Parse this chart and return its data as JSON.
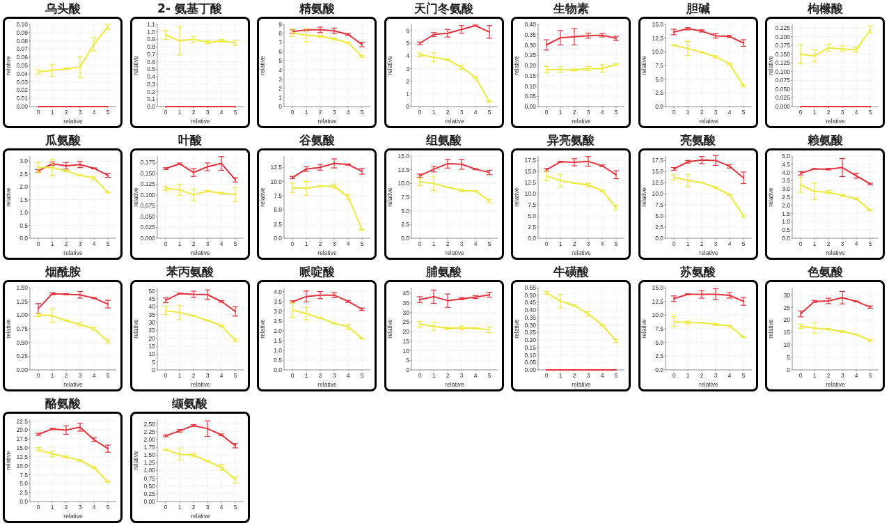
{
  "chart_data": [
    {
      "type": "line",
      "title": "乌头酸",
      "xlabel": "relative",
      "ylabel": "relative",
      "x": [
        0,
        1,
        2,
        3,
        4,
        5
      ],
      "xlim": [
        -0.6,
        5.6
      ],
      "xticks": [
        0,
        1,
        2,
        3,
        4,
        5
      ],
      "ylim": [
        0,
        0.1
      ],
      "yticks": [
        {
          "value": 0,
          "label": "0.00"
        },
        0.01,
        0.02,
        0.03,
        0.04,
        0.05,
        0.06,
        0.07,
        0.08,
        0.09,
        {
          "value": 0.1,
          "label": "0.10"
        }
      ],
      "grid": true,
      "series": [
        {
          "color": "#e8303a",
          "values": [
            0,
            0,
            0,
            0,
            0,
            0
          ]
        },
        {
          "color": "#eee83a",
          "values": [
            0.042,
            0.044,
            0.046,
            0.048,
            0.076,
            0.097
          ],
          "errors": [
            0.003,
            0.007,
            0.001,
            0.013,
            0.008,
            0.003
          ]
        }
      ]
    },
    {
      "type": "line",
      "title": "2- 氨基丁酸",
      "xlabel": "relative",
      "ylabel": "relative",
      "x": [
        0,
        1,
        2,
        3,
        4,
        5
      ],
      "xlim": [
        -0.6,
        5.6
      ],
      "xticks": [
        0,
        1,
        2,
        3,
        4,
        5
      ],
      "ylim": [
        0,
        1.1
      ],
      "yticks": [
        {
          "value": 0,
          "label": "0.0"
        },
        0.1,
        0.2,
        0.3,
        0.4,
        0.5,
        0.6,
        0.7,
        0.8,
        0.9,
        {
          "value": 1,
          "label": "1.0"
        },
        1.1
      ],
      "grid": true,
      "series": [
        {
          "color": "#e8303a",
          "values": [
            0,
            0,
            0,
            0,
            0,
            0
          ]
        },
        {
          "color": "#eee83a",
          "values": [
            0.96,
            0.88,
            0.9,
            0.86,
            0.88,
            0.85
          ],
          "errors": [
            0.06,
            0.19,
            0.04,
            0.02,
            0.02,
            0.03
          ]
        }
      ]
    },
    {
      "type": "line",
      "title": "精氨酸",
      "xlabel": "relative",
      "ylabel": "relative",
      "x": [
        0,
        1,
        2,
        3,
        4,
        5
      ],
      "xlim": [
        -0.6,
        5.6
      ],
      "xticks": [
        0,
        1,
        2,
        3,
        4,
        5
      ],
      "ylim": [
        0,
        9
      ],
      "yticks": [
        0,
        1,
        2,
        3,
        4,
        5,
        6,
        7,
        8,
        9
      ],
      "grid": true,
      "series": [
        {
          "color": "#e8303a",
          "values": [
            8.2,
            8.4,
            8.4,
            8.3,
            7.9,
            6.8
          ],
          "errors": [
            0.2,
            0.1,
            0.3,
            0.3,
            0.1,
            0.25
          ]
        },
        {
          "color": "#eee83a",
          "values": [
            8.1,
            7.8,
            7.7,
            7.4,
            7.0,
            5.5
          ],
          "errors": [
            0.4,
            0.7,
            0.1,
            0.1,
            0.05,
            0.1
          ]
        }
      ]
    },
    {
      "type": "line",
      "title": "天门冬氨酸",
      "xlabel": "relative",
      "ylabel": "relative",
      "x": [
        0,
        1,
        2,
        3,
        4,
        5
      ],
      "xlim": [
        -0.6,
        5.6
      ],
      "xticks": [
        0,
        1,
        2,
        3,
        4,
        5
      ],
      "ylim": [
        0,
        6.5
      ],
      "yticks": [
        0,
        1,
        2,
        3,
        4,
        5,
        6
      ],
      "grid": true,
      "series": [
        {
          "color": "#e8303a",
          "values": [
            5.0,
            5.7,
            5.8,
            6.1,
            6.4,
            5.9
          ],
          "errors": [
            0.1,
            0.15,
            0.3,
            0.3,
            0.05,
            0.5
          ]
        },
        {
          "color": "#eee83a",
          "values": [
            4.1,
            3.9,
            3.7,
            3.1,
            2.3,
            0.4
          ],
          "errors": [
            0.15,
            0.35,
            0.05,
            0.15,
            0.05,
            0.05
          ]
        }
      ]
    },
    {
      "type": "line",
      "title": "生物素",
      "xlabel": "relative",
      "ylabel": "relative",
      "x": [
        0,
        1,
        2,
        3,
        4,
        5
      ],
      "xlim": [
        -0.6,
        5.6
      ],
      "xticks": [
        0,
        1,
        2,
        3,
        4,
        5
      ],
      "ylim": [
        0,
        0.4
      ],
      "yticks": [
        {
          "value": 0,
          "label": "0.00"
        },
        0.05,
        {
          "value": 0.1,
          "label": "0.10"
        },
        0.15,
        {
          "value": 0.2,
          "label": "0.20"
        },
        0.25,
        {
          "value": 0.3,
          "label": "0.30"
        },
        0.35,
        {
          "value": 0.4,
          "label": "0.40"
        }
      ],
      "grid": true,
      "series": [
        {
          "color": "#e8303a",
          "values": [
            0.3,
            0.335,
            0.34,
            0.345,
            0.347,
            0.332
          ],
          "errors": [
            0.025,
            0.035,
            0.04,
            0.012,
            0.008,
            0.01
          ]
        },
        {
          "color": "#eee83a",
          "values": [
            0.18,
            0.18,
            0.178,
            0.185,
            0.185,
            0.205
          ],
          "errors": [
            0.015,
            0.013,
            0.005,
            0.01,
            0.018,
            0.004
          ]
        }
      ]
    },
    {
      "type": "line",
      "title": "胆碱",
      "xlabel": "relative",
      "ylabel": "relative",
      "x": [
        0,
        1,
        2,
        3,
        4,
        5
      ],
      "xlim": [
        -0.6,
        5.6
      ],
      "xticks": [
        0,
        1,
        2,
        3,
        4,
        5
      ],
      "ylim": [
        0,
        15
      ],
      "yticks": [
        {
          "value": 0,
          "label": "0.0"
        },
        2.5,
        {
          "value": 5,
          "label": "5.0"
        },
        7.5,
        {
          "value": 10,
          "label": "10.0"
        },
        12.5,
        {
          "value": 15,
          "label": "15.0"
        }
      ],
      "grid": true,
      "series": [
        {
          "color": "#e8303a",
          "values": [
            13.6,
            14.2,
            13.8,
            12.9,
            12.8,
            11.6
          ],
          "errors": [
            0.5,
            0.2,
            0.2,
            0.4,
            0.2,
            0.6
          ]
        },
        {
          "color": "#eee83a",
          "values": [
            11.2,
            10.6,
            9.9,
            9.1,
            7.8,
            3.8
          ],
          "errors": [
            0.1,
            1.3,
            0.1,
            0.2,
            0.1,
            0.2
          ]
        }
      ]
    },
    {
      "type": "line",
      "title": "枸橼酸",
      "xlabel": "relative",
      "ylabel": "relative",
      "x": [
        0,
        1,
        2,
        3,
        4,
        5
      ],
      "xlim": [
        -0.6,
        5.6
      ],
      "xticks": [
        0,
        1,
        2,
        3,
        4,
        5
      ],
      "ylim": [
        0,
        0.235
      ],
      "yticks": [
        {
          "value": 0,
          "label": "0.000"
        },
        0.025,
        {
          "value": 0.05,
          "label": "0.050"
        },
        0.075,
        {
          "value": 0.1,
          "label": "0.100"
        },
        0.125,
        {
          "value": 0.15,
          "label": "0.150"
        },
        0.175,
        {
          "value": 0.2,
          "label": "0.200"
        },
        0.225
      ],
      "grid": true,
      "series": [
        {
          "color": "#e8303a",
          "values": [
            0,
            0,
            0,
            0,
            0,
            0
          ]
        },
        {
          "color": "#eee83a",
          "values": [
            0.15,
            0.145,
            0.168,
            0.165,
            0.162,
            0.22
          ],
          "errors": [
            0.027,
            0.017,
            0.01,
            0.008,
            0.006,
            0.01
          ]
        }
      ]
    },
    {
      "type": "line",
      "title": "瓜氨酸",
      "xlabel": "relative",
      "ylabel": "relative",
      "x": [
        0,
        1,
        2,
        3,
        4,
        5
      ],
      "xlim": [
        -0.6,
        5.6
      ],
      "xticks": [
        0,
        1,
        2,
        3,
        4,
        5
      ],
      "ylim": [
        0,
        3.2
      ],
      "yticks": [
        {
          "value": 0,
          "label": "0.0"
        },
        0.5,
        {
          "value": 1,
          "label": "1.0"
        },
        1.5,
        {
          "value": 2,
          "label": "2.0"
        },
        2.5,
        {
          "value": 3,
          "label": "3.0"
        }
      ],
      "grid": true,
      "series": [
        {
          "color": "#e8303a",
          "values": [
            2.62,
            2.9,
            2.82,
            2.87,
            2.72,
            2.45
          ],
          "errors": [
            0.05,
            0.07,
            0.13,
            0.12,
            0.02,
            0.08
          ]
        },
        {
          "color": "#eee83a",
          "values": [
            2.75,
            2.75,
            2.62,
            2.45,
            2.35,
            1.78
          ],
          "errors": [
            0.2,
            0.32,
            0.03,
            0.02,
            0.06,
            0.02
          ]
        }
      ]
    },
    {
      "type": "line",
      "title": "叶酸",
      "xlabel": "relative",
      "ylabel": "relative",
      "x": [
        0,
        1,
        2,
        3,
        4,
        5
      ],
      "xlim": [
        -0.6,
        5.6
      ],
      "xticks": [
        0,
        1,
        2,
        3,
        4,
        5
      ],
      "ylim": [
        0,
        0.19
      ],
      "yticks": [
        {
          "value": 0,
          "label": "0.000"
        },
        0.025,
        {
          "value": 0.05,
          "label": "0.050"
        },
        0.075,
        {
          "value": 0.1,
          "label": "0.100"
        },
        0.125,
        {
          "value": 0.15,
          "label": "0.150"
        },
        0.175
      ],
      "grid": true,
      "series": [
        {
          "color": "#e8303a",
          "values": [
            0.161,
            0.172,
            0.152,
            0.165,
            0.173,
            0.135
          ],
          "errors": [
            0.002,
            0.002,
            0.009,
            0.009,
            0.016,
            0.005
          ]
        },
        {
          "color": "#eee83a",
          "values": [
            0.115,
            0.112,
            0.1,
            0.109,
            0.104,
            0.101
          ],
          "errors": [
            0.005,
            0.013,
            0.013,
            0.002,
            0.002,
            0.016
          ]
        }
      ]
    },
    {
      "type": "line",
      "title": "谷氨酸",
      "xlabel": "relative",
      "ylabel": "relative",
      "x": [
        0,
        1,
        2,
        3,
        4,
        5
      ],
      "xlim": [
        -0.6,
        5.6
      ],
      "xticks": [
        0,
        1,
        2,
        3,
        4,
        5
      ],
      "ylim": [
        0,
        14.5
      ],
      "yticks": [
        {
          "value": 0,
          "label": "0.0"
        },
        2.5,
        {
          "value": 5,
          "label": "5.0"
        },
        7.5,
        {
          "value": 10,
          "label": "10.0"
        },
        12.5
      ],
      "grid": true,
      "series": [
        {
          "color": "#e8303a",
          "values": [
            10.7,
            12.2,
            12.5,
            13.2,
            13.0,
            11.8
          ],
          "errors": [
            0.2,
            0.4,
            0.5,
            0.8,
            0.1,
            0.5
          ]
        },
        {
          "color": "#eee83a",
          "values": [
            8.9,
            8.8,
            9.2,
            9.2,
            7.3,
            1.5
          ],
          "errors": [
            0.8,
            1.2,
            0.1,
            0.35,
            0.4,
            0.1
          ]
        }
      ]
    },
    {
      "type": "line",
      "title": "组氨酸",
      "xlabel": "relative",
      "ylabel": "relative",
      "x": [
        0,
        1,
        2,
        3,
        4,
        5
      ],
      "xlim": [
        -0.6,
        5.6
      ],
      "xticks": [
        0,
        1,
        2,
        3,
        4,
        5
      ],
      "ylim": [
        0,
        15
      ],
      "yticks": [
        {
          "value": 0,
          "label": "0.0"
        },
        2.5,
        {
          "value": 5,
          "label": "5.0"
        },
        7.5,
        {
          "value": 10,
          "label": "10.0"
        },
        12.5,
        {
          "value": 15,
          "label": "15.0"
        }
      ],
      "grid": true,
      "series": [
        {
          "color": "#e8303a",
          "values": [
            11.4,
            12.6,
            13.6,
            13.5,
            12.6,
            12.0
          ],
          "errors": [
            0.3,
            0.5,
            0.8,
            0.9,
            0.1,
            0.4
          ]
        },
        {
          "color": "#eee83a",
          "values": [
            10.3,
            10.0,
            9.3,
            8.7,
            8.6,
            6.8
          ],
          "errors": [
            0.7,
            1.3,
            0.05,
            0.2,
            0.05,
            0.3
          ]
        }
      ]
    },
    {
      "type": "line",
      "title": "异亮氨酸",
      "xlabel": "relative",
      "ylabel": "relative",
      "x": [
        0,
        1,
        2,
        3,
        4,
        5
      ],
      "xlim": [
        -0.6,
        5.6
      ],
      "xticks": [
        0,
        1,
        2,
        3,
        4,
        5
      ],
      "ylim": [
        0,
        18.5
      ],
      "yticks": [
        {
          "value": 0,
          "label": "0.0"
        },
        2.5,
        {
          "value": 5,
          "label": "5.0"
        },
        7.5,
        {
          "value": 10,
          "label": "10.0"
        },
        12.5,
        {
          "value": 15,
          "label": "15.0"
        },
        17.5
      ],
      "grid": true,
      "series": [
        {
          "color": "#e8303a",
          "values": [
            15.4,
            17.2,
            17.1,
            17.3,
            16.3,
            14.3
          ],
          "errors": [
            0.3,
            0.1,
            0.8,
            1.1,
            0.2,
            0.9
          ]
        },
        {
          "color": "#eee83a",
          "values": [
            14.0,
            13.0,
            12.4,
            12.0,
            10.7,
            6.9
          ],
          "errors": [
            1.0,
            1.4,
            0.05,
            0.3,
            0.2,
            0.5
          ]
        }
      ]
    },
    {
      "type": "line",
      "title": "亮氨酸",
      "xlabel": "relative",
      "ylabel": "relative",
      "x": [
        0,
        1,
        2,
        3,
        4,
        5
      ],
      "xlim": [
        -0.6,
        5.6
      ],
      "xticks": [
        0,
        1,
        2,
        3,
        4,
        5
      ],
      "ylim": [
        0,
        18.5
      ],
      "yticks": [
        {
          "value": 0,
          "label": "0.0"
        },
        2.5,
        {
          "value": 5,
          "label": "5.0"
        },
        7.5,
        {
          "value": 10,
          "label": "10.0"
        },
        12.5,
        {
          "value": 15,
          "label": "15.0"
        },
        17.5
      ],
      "grid": true,
      "series": [
        {
          "color": "#e8303a",
          "values": [
            15.6,
            17.2,
            17.6,
            17.5,
            16.2,
            13.6
          ],
          "errors": [
            0.3,
            0.3,
            0.8,
            1.1,
            0.4,
            1.3
          ]
        },
        {
          "color": "#eee83a",
          "values": [
            13.7,
            13.0,
            12.5,
            11.4,
            9.8,
            5.0
          ],
          "errors": [
            0.6,
            1.4,
            0.05,
            0.2,
            0.1,
            0.3
          ]
        }
      ]
    },
    {
      "type": "line",
      "title": "赖氨酸",
      "xlabel": "relative",
      "ylabel": "relative",
      "x": [
        0,
        1,
        2,
        3,
        4,
        5
      ],
      "xlim": [
        -0.6,
        5.6
      ],
      "xticks": [
        0,
        1,
        2,
        3,
        4,
        5
      ],
      "ylim": [
        0,
        5
      ],
      "yticks": [
        {
          "value": 0,
          "label": "0.0"
        },
        0.5,
        {
          "value": 1,
          "label": "1.0"
        },
        1.5,
        {
          "value": 2,
          "label": "2.0"
        },
        2.5,
        {
          "value": 3,
          "label": "3.0"
        },
        3.5,
        {
          "value": 4,
          "label": "4.0"
        },
        4.5,
        {
          "value": 5,
          "label": "5.0"
        }
      ],
      "grid": true,
      "series": [
        {
          "color": "#e8303a",
          "values": [
            3.95,
            4.22,
            4.2,
            4.3,
            3.8,
            3.3
          ],
          "errors": [
            0.1,
            0.02,
            0.05,
            0.55,
            0.15,
            0.05
          ]
        },
        {
          "color": "#eee83a",
          "values": [
            3.25,
            2.85,
            2.8,
            2.6,
            2.4,
            1.7
          ],
          "errors": [
            0.45,
            0.5,
            0.1,
            0.05,
            0.05,
            0.02
          ]
        }
      ]
    },
    {
      "type": "line",
      "title": "烟酰胺",
      "xlabel": "relative",
      "ylabel": "relative",
      "x": [
        0,
        1,
        2,
        3,
        4,
        5
      ],
      "xlim": [
        -0.6,
        5.6
      ],
      "xticks": [
        0,
        1,
        2,
        3,
        4,
        5
      ],
      "ylim": [
        0,
        1.5
      ],
      "yticks": [
        {
          "value": 0,
          "label": "0.00"
        },
        0.25,
        {
          "value": 0.5,
          "label": "0.50"
        },
        0.75,
        {
          "value": 1,
          "label": "1.00"
        },
        1.25,
        {
          "value": 1.5,
          "label": "1.50"
        }
      ],
      "grid": true,
      "series": [
        {
          "color": "#e8303a",
          "values": [
            1.12,
            1.39,
            1.38,
            1.37,
            1.31,
            1.2
          ],
          "errors": [
            0.09,
            0.02,
            0.01,
            0.06,
            0.01,
            0.07
          ]
        },
        {
          "color": "#eee83a",
          "values": [
            1.0,
            0.99,
            0.9,
            0.83,
            0.75,
            0.52
          ],
          "errors": [
            0.03,
            0.12,
            0.01,
            0.03,
            0.03,
            0.03
          ]
        }
      ]
    },
    {
      "type": "line",
      "title": "苯丙氨酸",
      "xlabel": "relative",
      "ylabel": "relative",
      "x": [
        0,
        1,
        2,
        3,
        4,
        5
      ],
      "xlim": [
        -0.6,
        5.6
      ],
      "xticks": [
        0,
        1,
        2,
        3,
        4,
        5
      ],
      "ylim": [
        0,
        52
      ],
      "yticks": [
        0,
        5,
        10,
        15,
        20,
        25,
        30,
        35,
        40,
        45,
        50
      ],
      "grid": true,
      "series": [
        {
          "color": "#e8303a",
          "values": [
            44,
            48.3,
            47.8,
            47.6,
            43.3,
            37
          ],
          "errors": [
            1.5,
            0.3,
            2,
            3,
            0.5,
            3
          ]
        },
        {
          "color": "#eee83a",
          "values": [
            37.5,
            36.3,
            34.2,
            31.3,
            28,
            18.8
          ],
          "errors": [
            2.5,
            4.5,
            0.2,
            0.3,
            0.5,
            1
          ]
        }
      ]
    },
    {
      "type": "line",
      "title": "哌啶酸",
      "xlabel": "relative",
      "ylabel": "relative",
      "x": [
        0,
        1,
        2,
        3,
        4,
        5
      ],
      "xlim": [
        -0.6,
        5.6
      ],
      "xticks": [
        0,
        1,
        2,
        3,
        4,
        5
      ],
      "ylim": [
        0,
        4.2
      ],
      "yticks": [
        {
          "value": 0,
          "label": "0.0"
        },
        0.5,
        {
          "value": 1,
          "label": "1.0"
        },
        1.5,
        {
          "value": 2,
          "label": "2.0"
        },
        2.5,
        {
          "value": 3,
          "label": "3.0"
        },
        3.5,
        {
          "value": 4,
          "label": "4.0"
        }
      ],
      "grid": true,
      "series": [
        {
          "color": "#e8303a",
          "values": [
            3.48,
            3.75,
            3.82,
            3.82,
            3.5,
            3.1
          ],
          "errors": [
            0.05,
            0.28,
            0.18,
            0.13,
            0.05,
            0.06
          ]
        },
        {
          "color": "#eee83a",
          "values": [
            3.05,
            2.88,
            2.65,
            2.38,
            2.2,
            1.6
          ],
          "errors": [
            0.37,
            0.32,
            0.02,
            0.03,
            0.12,
            0.02
          ]
        }
      ]
    },
    {
      "type": "line",
      "title": "脯氨酸",
      "xlabel": "relative",
      "ylabel": "relative",
      "x": [
        0,
        1,
        2,
        3,
        4,
        5
      ],
      "xlim": [
        -0.6,
        5.6
      ],
      "xticks": [
        0,
        1,
        2,
        3,
        4,
        5
      ],
      "ylim": [
        0,
        43
      ],
      "yticks": [
        0,
        5,
        10,
        15,
        20,
        25,
        30,
        35,
        40
      ],
      "grid": true,
      "series": [
        {
          "color": "#e8303a",
          "values": [
            36.8,
            38.3,
            36.2,
            37.2,
            38.1,
            39.3
          ],
          "errors": [
            1.5,
            3.5,
            3.5,
            0.5,
            0.8,
            1.3
          ]
        },
        {
          "color": "#eee83a",
          "values": [
            24,
            22.8,
            21.8,
            22,
            21.8,
            21
          ],
          "errors": [
            1.5,
            2,
            0.6,
            1,
            0.3,
            1.5
          ]
        }
      ]
    },
    {
      "type": "line",
      "title": "牛磺酸",
      "xlabel": "relative",
      "ylabel": "relative",
      "x": [
        0,
        1,
        2,
        3,
        4,
        5
      ],
      "xlim": [
        -0.6,
        5.6
      ],
      "xticks": [
        0,
        1,
        2,
        3,
        4,
        5
      ],
      "ylim": [
        0,
        0.55
      ],
      "yticks": [
        {
          "value": 0,
          "label": "0.00"
        },
        0.05,
        {
          "value": 0.1,
          "label": "0.10"
        },
        0.15,
        {
          "value": 0.2,
          "label": "0.20"
        },
        0.25,
        {
          "value": 0.3,
          "label": "0.30"
        },
        0.35,
        {
          "value": 0.4,
          "label": "0.40"
        },
        0.45,
        {
          "value": 0.5,
          "label": "0.50"
        },
        0.55
      ],
      "grid": true,
      "series": [
        {
          "color": "#e8303a",
          "values": [
            0,
            0,
            0,
            0,
            0,
            0
          ]
        },
        {
          "color": "#eee83a",
          "values": [
            0.515,
            0.46,
            0.43,
            0.375,
            0.3,
            0.195
          ],
          "errors": [
            0.01,
            0.045,
            0.005,
            0.015,
            0.005,
            0.01
          ]
        }
      ]
    },
    {
      "type": "line",
      "title": "苏氨酸",
      "xlabel": "relative",
      "ylabel": "relative",
      "x": [
        0,
        1,
        2,
        3,
        4,
        5
      ],
      "xlim": [
        -0.6,
        5.6
      ],
      "xticks": [
        0,
        1,
        2,
        3,
        4,
        5
      ],
      "ylim": [
        0,
        15
      ],
      "yticks": [
        {
          "value": 0,
          "label": "0.0"
        },
        2.5,
        {
          "value": 5,
          "label": "5.0"
        },
        7.5,
        {
          "value": 10,
          "label": "10.0"
        },
        12.5,
        {
          "value": 15,
          "label": "15.0"
        }
      ],
      "grid": true,
      "series": [
        {
          "color": "#e8303a",
          "values": [
            13.0,
            13.8,
            13.8,
            13.8,
            13.6,
            12.5
          ],
          "errors": [
            0.5,
            0.1,
            0.7,
            1.0,
            0.5,
            0.7
          ]
        },
        {
          "color": "#eee83a",
          "values": [
            8.8,
            8.6,
            8.6,
            8.3,
            8.0,
            6.0
          ],
          "errors": [
            0.9,
            0.3,
            0.05,
            0.2,
            0.1,
            0.05
          ]
        }
      ]
    },
    {
      "type": "line",
      "title": "色氨酸",
      "xlabel": "relative",
      "ylabel": "relative",
      "x": [
        0,
        1,
        2,
        3,
        4,
        5
      ],
      "xlim": [
        -0.6,
        5.6
      ],
      "xticks": [
        0,
        1,
        2,
        3,
        4,
        5
      ],
      "ylim": [
        0,
        33
      ],
      "yticks": [
        0,
        5,
        10,
        15,
        20,
        25,
        30
      ],
      "grid": true,
      "series": [
        {
          "color": "#e8303a",
          "values": [
            22.5,
            27.5,
            27.7,
            29,
            27.5,
            25.2
          ],
          "errors": [
            1.2,
            0.4,
            1.1,
            2.5,
            0.2,
            0.5
          ]
        },
        {
          "color": "#eee83a",
          "values": [
            17.5,
            16.8,
            16.3,
            15.4,
            14.2,
            11.8
          ],
          "errors": [
            0.8,
            2.2,
            0.3,
            0.3,
            0.1,
            0.5
          ]
        }
      ]
    },
    {
      "type": "line",
      "title": "酪氨酸",
      "xlabel": "relative",
      "ylabel": "relative",
      "x": [
        0,
        1,
        2,
        3,
        4,
        5
      ],
      "xlim": [
        -0.6,
        5.6
      ],
      "xticks": [
        0,
        1,
        2,
        3,
        4,
        5
      ],
      "ylim": [
        0,
        23
      ],
      "yticks": [
        {
          "value": 0,
          "label": "0.0"
        },
        2.5,
        {
          "value": 5,
          "label": "5.0"
        },
        7.5,
        {
          "value": 10,
          "label": "10.0"
        },
        12.5,
        {
          "value": 15,
          "label": "15.0"
        },
        17.5,
        {
          "value": 20,
          "label": "20.0"
        },
        22.5
      ],
      "grid": true,
      "series": [
        {
          "color": "#e8303a",
          "values": [
            18.8,
            20.3,
            20.0,
            20.8,
            17.3,
            14.8
          ],
          "errors": [
            0.3,
            0.2,
            1.2,
            1.1,
            0.5,
            1.0
          ]
        },
        {
          "color": "#eee83a",
          "values": [
            14.6,
            13.3,
            12.5,
            11.5,
            9.5,
            5.5
          ],
          "errors": [
            0.5,
            0.8,
            0.3,
            0.2,
            0.2,
            0.1
          ]
        }
      ]
    },
    {
      "type": "line",
      "title": "缬氨酸",
      "xlabel": "relative",
      "ylabel": "relative",
      "x": [
        0,
        1,
        2,
        3,
        4,
        5
      ],
      "xlim": [
        -0.6,
        5.6
      ],
      "xticks": [
        0,
        1,
        2,
        3,
        4,
        5
      ],
      "ylim": [
        0,
        2.65
      ],
      "yticks": [
        {
          "value": 0,
          "label": "0.00"
        },
        0.25,
        {
          "value": 0.5,
          "label": "0.50"
        },
        0.75,
        {
          "value": 1,
          "label": "1.00"
        },
        1.25,
        {
          "value": 1.5,
          "label": "1.50"
        },
        1.75,
        {
          "value": 2,
          "label": "2.00"
        },
        2.25,
        {
          "value": 2.5,
          "label": "2.50"
        }
      ],
      "grid": true,
      "series": [
        {
          "color": "#e8303a",
          "values": [
            2.12,
            2.28,
            2.45,
            2.35,
            2.15,
            1.8
          ],
          "errors": [
            0.03,
            0.04,
            0.03,
            0.25,
            0.03,
            0.07
          ]
        },
        {
          "color": "#eee83a",
          "values": [
            1.67,
            1.52,
            1.5,
            1.3,
            1.1,
            0.7
          ],
          "errors": [
            0.02,
            0.18,
            0.06,
            0.02,
            0.09,
            0.1
          ]
        }
      ]
    }
  ]
}
